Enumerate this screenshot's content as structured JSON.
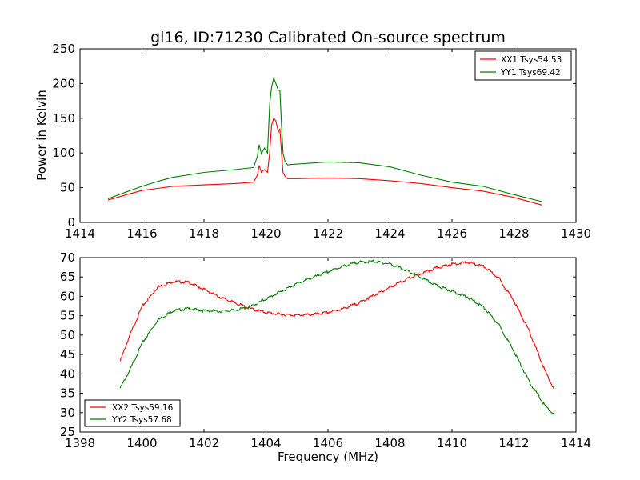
{
  "chart_data": [
    {
      "type": "line",
      "title": "gl16, ID:71230 Calibrated On-source spectrum",
      "xlabel": "",
      "ylabel": "Power in Kelvin",
      "xlim": [
        1414,
        1430
      ],
      "ylim": [
        0,
        250
      ],
      "xticks": [
        "1414",
        "1416",
        "1418",
        "1420",
        "1422",
        "1424",
        "1426",
        "1428",
        "1430"
      ],
      "yticks": [
        "0",
        "50",
        "100",
        "150",
        "200",
        "250"
      ],
      "grid": false,
      "legend_position": "top-right",
      "series": [
        {
          "name": "XX1 Tsys54.53",
          "color": "#ff0000",
          "x": [
            1414.9,
            1415.5,
            1416,
            1416.5,
            1417,
            1418,
            1419,
            1419.6,
            1419.72,
            1419.78,
            1419.85,
            1419.95,
            1420.05,
            1420.12,
            1420.18,
            1420.25,
            1420.32,
            1420.4,
            1420.45,
            1420.5,
            1420.55,
            1420.62,
            1420.7,
            1421,
            1422,
            1423,
            1424,
            1425,
            1426,
            1427,
            1428,
            1428.9
          ],
          "y": [
            32,
            40,
            46,
            49,
            52,
            54,
            56,
            58,
            68,
            82,
            72,
            76,
            72,
            100,
            140,
            150,
            146,
            130,
            135,
            100,
            72,
            66,
            63,
            63,
            64,
            63,
            60,
            56,
            50,
            45,
            36,
            25
          ]
        },
        {
          "name": "YY1 Tsys69.42",
          "color": "#008000",
          "x": [
            1414.9,
            1415.5,
            1416,
            1416.5,
            1417,
            1418,
            1419,
            1419.6,
            1419.72,
            1419.78,
            1419.85,
            1419.95,
            1420.05,
            1420.12,
            1420.18,
            1420.25,
            1420.32,
            1420.4,
            1420.45,
            1420.5,
            1420.55,
            1420.62,
            1420.7,
            1421,
            1422,
            1423,
            1424,
            1425,
            1426,
            1427,
            1428,
            1428.9
          ],
          "y": [
            34,
            44,
            52,
            59,
            65,
            72,
            76,
            79,
            95,
            112,
            99,
            107,
            100,
            170,
            195,
            208,
            200,
            190,
            190,
            140,
            100,
            87,
            83,
            84,
            87,
            86,
            80,
            68,
            58,
            52,
            40,
            30
          ]
        }
      ]
    },
    {
      "type": "line",
      "title": "",
      "xlabel": "Frequency (MHz)",
      "ylabel": "",
      "xlim": [
        1398,
        1414
      ],
      "ylim": [
        25,
        70
      ],
      "xticks": [
        "1398",
        "1400",
        "1402",
        "1404",
        "1406",
        "1408",
        "1410",
        "1412",
        "1414"
      ],
      "yticks": [
        "25",
        "30",
        "35",
        "40",
        "45",
        "50",
        "55",
        "60",
        "65",
        "70"
      ],
      "grid": false,
      "legend_position": "bottom-left",
      "series": [
        {
          "name": "XX2 Tsys59.16",
          "color": "#ff0000",
          "x": [
            1399.3,
            1399.6,
            1400,
            1400.5,
            1401,
            1401.5,
            1402,
            1402.5,
            1403,
            1403.5,
            1404,
            1404.5,
            1405,
            1405.5,
            1406,
            1406.5,
            1407,
            1407.5,
            1408,
            1408.5,
            1409,
            1409.5,
            1410,
            1410.5,
            1411,
            1411.5,
            1412,
            1412.5,
            1413,
            1413.3
          ],
          "y": [
            43.5,
            50,
            57.5,
            62.5,
            64,
            63.8,
            62,
            60,
            58.5,
            57,
            56,
            55.5,
            55.3,
            55.5,
            56,
            57,
            58.5,
            60.5,
            62.5,
            64.5,
            66,
            67.5,
            68.5,
            69,
            68,
            65,
            59,
            51,
            41,
            36
          ]
        },
        {
          "name": "YY2 Tsys57.68",
          "color": "#008000",
          "x": [
            1399.3,
            1399.6,
            1400,
            1400.5,
            1401,
            1401.5,
            1402,
            1402.5,
            1403,
            1403.5,
            1404,
            1404.5,
            1405,
            1405.5,
            1406,
            1406.5,
            1407,
            1407.5,
            1408,
            1408.5,
            1409,
            1409.5,
            1410,
            1410.5,
            1411,
            1411.5,
            1412,
            1412.5,
            1413,
            1413.3
          ],
          "y": [
            36.5,
            41,
            48,
            54,
            56.5,
            57,
            56.5,
            56.3,
            56.6,
            57.5,
            59.5,
            61.5,
            63.5,
            65,
            66.5,
            68,
            69,
            69.2,
            68.5,
            67,
            65,
            63,
            61.5,
            60,
            57.5,
            53,
            46,
            38,
            32,
            29.5
          ]
        }
      ]
    }
  ]
}
